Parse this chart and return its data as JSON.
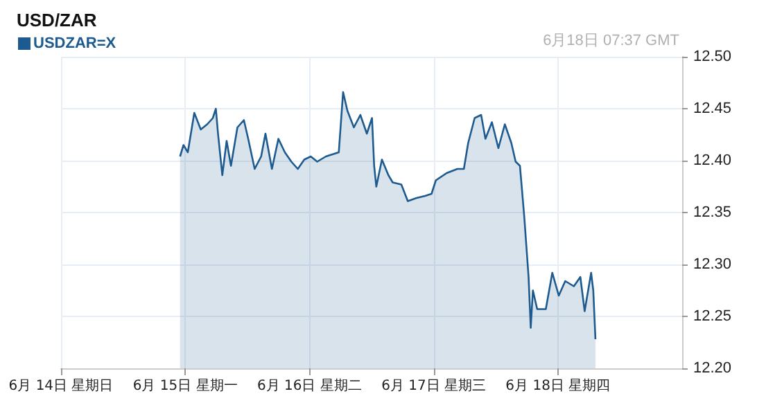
{
  "chart_data": {
    "type": "area",
    "title": "USD/ZAR",
    "annotations": [
      "6月18日 07:37 GMT"
    ],
    "legend": "top left",
    "grid": true,
    "marker": "none",
    "x": [
      "--06-14T23:00",
      "--06-14T23:40",
      "--06-15T00:30",
      "--06-15T01:45",
      "--06-15T03:00",
      "--06-15T04:15",
      "--06-15T05:20",
      "--06-15T05:55",
      "--06-15T06:20",
      "--06-15T07:10",
      "--06-15T08:00",
      "--06-15T08:50",
      "--06-15T10:05",
      "--06-15T11:20",
      "--06-15T12:10",
      "--06-15T13:25",
      "--06-15T14:40",
      "--06-15T15:30",
      "--06-15T16:45",
      "--06-15T18:00",
      "--06-15T19:15",
      "--06-15T20:30",
      "--06-15T21:45",
      "--06-15T23:00",
      "--06-16T00:15",
      "--06-16T01:30",
      "--06-16T03:10",
      "--06-16T05:40",
      "--06-16T06:30",
      "--06-16T07:20",
      "--06-16T08:35",
      "--06-16T09:50",
      "--06-16T11:05",
      "--06-16T12:05",
      "--06-16T12:30",
      "--06-16T12:55",
      "--06-16T14:00",
      "--06-16T15:15",
      "--06-16T16:05",
      "--06-16T17:45",
      "--06-16T19:00",
      "--06-16T20:40",
      "--06-16T22:20",
      "--06-16T23:35",
      "--06-17T00:25",
      "--06-17T02:30",
      "--06-17T04:35",
      "--06-17T05:50",
      "--06-17T06:40",
      "--06-17T07:55",
      "--06-17T09:10",
      "--06-17T10:00",
      "--06-17T11:15",
      "--06-17T12:30",
      "--06-17T13:45",
      "--06-17T15:00",
      "--06-17T15:50",
      "--06-17T16:40",
      "--06-17T17:30",
      "--06-17T18:20",
      "--06-17T18:45",
      "--06-17T19:10",
      "--06-17T20:00",
      "--06-17T21:40",
      "--06-17T22:55",
      "--06-18T00:10",
      "--06-18T01:25",
      "--06-18T03:05",
      "--06-18T04:20",
      "--06-18T05:10",
      "--06-18T06:25",
      "--06-18T06:50",
      "--06-18T07:15"
    ],
    "series": [
      {
        "name": "USDZAR=X",
        "color": "#1c5a8f",
        "values": [
          12.404,
          12.415,
          12.408,
          12.446,
          12.43,
          12.435,
          12.441,
          12.45,
          12.426,
          12.386,
          12.419,
          12.395,
          12.432,
          12.439,
          12.421,
          12.392,
          12.404,
          12.426,
          12.392,
          12.421,
          12.408,
          12.399,
          12.392,
          12.401,
          12.404,
          12.399,
          12.404,
          12.408,
          12.466,
          12.448,
          12.432,
          12.444,
          12.426,
          12.441,
          12.395,
          12.375,
          12.401,
          12.386,
          12.379,
          12.377,
          12.361,
          12.364,
          12.366,
          12.368,
          12.381,
          12.388,
          12.392,
          12.392,
          12.417,
          12.441,
          12.444,
          12.421,
          12.437,
          12.412,
          12.435,
          12.417,
          12.399,
          12.395,
          12.346,
          12.288,
          12.239,
          12.275,
          12.257,
          12.257,
          12.292,
          12.27,
          12.284,
          12.279,
          12.288,
          12.255,
          12.292,
          12.275,
          12.228
        ]
      }
    ],
    "xlim": [
      "--06-14T00:00",
      "--06-19T00:00"
    ],
    "xticks": [
      {
        "value": "--06-14T00:00",
        "label": "6月 14日 星期日"
      },
      {
        "value": "--06-15T00:00",
        "label": "6月 15日 星期一"
      },
      {
        "value": "--06-16T00:00",
        "label": "6月 16日 星期二"
      },
      {
        "value": "--06-17T00:00",
        "label": "6月 17日 星期三"
      },
      {
        "value": "--06-18T00:00",
        "label": "6月 18日 星期四"
      }
    ],
    "ylim": [
      12.2,
      12.5
    ],
    "yticks": [
      {
        "value": 12.2,
        "label": "12.20"
      },
      {
        "value": 12.25,
        "label": "12.25"
      },
      {
        "value": 12.3,
        "label": "12.30"
      },
      {
        "value": 12.35,
        "label": "12.35"
      },
      {
        "value": 12.4,
        "label": "12.40"
      },
      {
        "value": 12.45,
        "label": "12.45"
      },
      {
        "value": 12.5,
        "label": "12.50"
      }
    ]
  }
}
